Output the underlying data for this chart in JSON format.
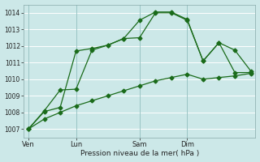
{
  "xlabel": "Pression niveau de la mer( hPa )",
  "ylim": [
    1006.5,
    1014.5
  ],
  "yticks": [
    1007,
    1008,
    1009,
    1010,
    1011,
    1012,
    1013,
    1014
  ],
  "background_color": "#cce8e8",
  "grid_color": "#b0d8d8",
  "line_color": "#1a6b1a",
  "xtick_labels": [
    "Ven",
    "Lun",
    "Sam",
    "Dim"
  ],
  "xtick_positions": [
    0,
    3,
    7,
    10
  ],
  "series1": [
    1007.0,
    1008.05,
    1008.3,
    1011.7,
    1011.85,
    1012.05,
    1012.45,
    1012.5,
    1014.0,
    1014.0,
    1013.55,
    1011.1,
    1012.2,
    1011.75,
    1010.5
  ],
  "series2": [
    1007.0,
    1008.1,
    1009.35,
    1009.4,
    1011.75,
    1012.05,
    1012.45,
    1013.55,
    1014.05,
    1014.05,
    1013.6,
    1011.1,
    1012.2,
    1010.4,
    1010.4
  ],
  "series3": [
    1007.0,
    1007.6,
    1008.0,
    1008.4,
    1008.7,
    1009.0,
    1009.3,
    1009.6,
    1009.9,
    1010.1,
    1010.3,
    1010.0,
    1010.1,
    1010.2,
    1010.35
  ],
  "n_points": 15,
  "xmin": 0,
  "xmax": 14,
  "vline_positions": [
    0,
    3,
    7,
    10
  ],
  "figsize": [
    3.2,
    2.0
  ],
  "dpi": 100
}
